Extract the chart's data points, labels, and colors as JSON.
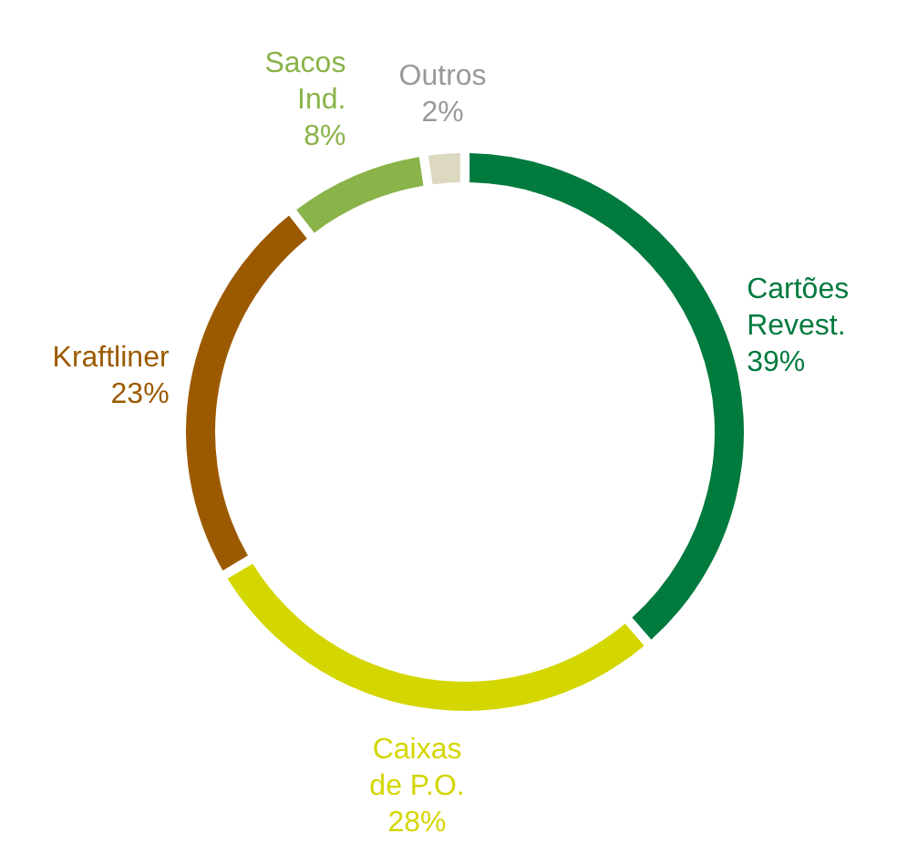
{
  "chart_data": {
    "type": "donut",
    "categories": [
      "Cartões Revest.",
      "Caixas de P.O.",
      "Kraftliner",
      "Sacos Ind.",
      "Outros"
    ],
    "values": [
      39,
      28,
      23,
      8,
      2
    ],
    "colors": [
      "#007a3d",
      "#d4d600",
      "#9c5a00",
      "#8ab34a",
      "#ddd8c0"
    ],
    "value_labels": [
      "39%",
      "28%",
      "23%",
      "8%",
      "2%"
    ]
  }
}
